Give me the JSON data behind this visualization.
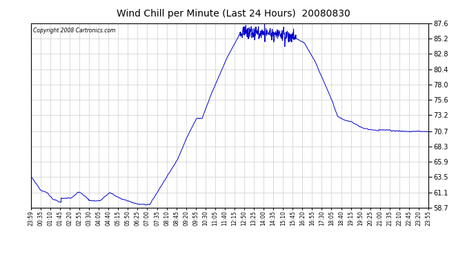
{
  "title": "Wind Chill per Minute (Last 24 Hours)  20080830",
  "copyright": "Copyright 2008 Cartronics.com",
  "line_color": "#0000cc",
  "background_color": "#ffffff",
  "plot_bg_color": "#ffffff",
  "grid_color": "#cccccc",
  "ylim": [
    58.7,
    87.6
  ],
  "yticks": [
    58.7,
    61.1,
    63.5,
    65.9,
    68.3,
    70.7,
    73.2,
    75.6,
    78.0,
    80.4,
    82.8,
    85.2,
    87.6
  ],
  "xtick_labels": [
    "23:59",
    "00:35",
    "01:10",
    "01:45",
    "02:20",
    "02:55",
    "03:30",
    "04:05",
    "04:40",
    "05:15",
    "05:50",
    "06:25",
    "07:00",
    "07:35",
    "08:10",
    "08:45",
    "09:20",
    "09:55",
    "10:30",
    "11:05",
    "11:40",
    "12:15",
    "12:50",
    "13:25",
    "14:00",
    "14:35",
    "15:10",
    "15:45",
    "16:20",
    "16:55",
    "17:30",
    "18:05",
    "18:40",
    "19:15",
    "19:50",
    "20:25",
    "21:00",
    "21:35",
    "22:10",
    "22:45",
    "23:20",
    "23:55"
  ]
}
